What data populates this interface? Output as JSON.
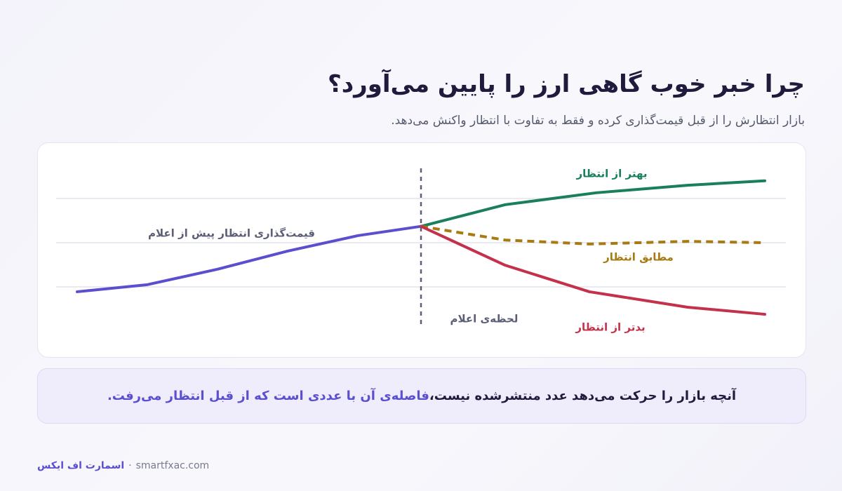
{
  "chart_data": {
    "type": "line",
    "title": "چرا خبر خوب گاهی ارز را پایین می‌آورد؟",
    "subtitle": "بازار انتظارش را از قبل قیمت‌گذاری کرده و فقط به تفاوت با انتظار واکنش می‌دهد.",
    "xlim": [
      -0.5,
      10.5
    ],
    "ylim": [
      0,
      4
    ],
    "yticks": [
      1,
      2,
      3
    ],
    "grid": true,
    "annotation": {
      "label": "لحظه‌ی اعلام",
      "x": 4.9
    },
    "series": [
      {
        "name": "قیمت‌گذاری انتظار پیش از اعلام",
        "color": "#5a4fcf",
        "dashed": false,
        "x": [
          0,
          1,
          2,
          3,
          4,
          4.9
        ],
        "values": [
          0.89,
          1.05,
          1.4,
          1.81,
          2.16,
          2.37
        ]
      },
      {
        "name": "بهتر از انتظار",
        "color": "#1a7f5a",
        "dashed": false,
        "x": [
          4.9,
          6.1,
          7.4,
          8.7,
          9.8
        ],
        "values": [
          2.37,
          2.86,
          3.13,
          3.3,
          3.4
        ]
      },
      {
        "name": "مطابق انتظار",
        "color": "#a77a12",
        "dashed": true,
        "x": [
          4.9,
          6.1,
          7.3,
          8.7,
          9.8
        ],
        "values": [
          2.37,
          2.06,
          1.97,
          2.03,
          2.0
        ]
      },
      {
        "name": "بدتر از انتظار",
        "color": "#c4314b",
        "dashed": false,
        "x": [
          4.9,
          6.1,
          7.3,
          8.7,
          9.8
        ],
        "values": [
          2.37,
          1.49,
          0.89,
          0.54,
          0.38
        ]
      }
    ]
  },
  "note": {
    "text": "آنچه بازار را حرکت می‌دهد عدد منتشرشده نیست، ",
    "highlight": "فاصله‌ی آن با عددی است که از قبل انتظار می‌رفت."
  },
  "footer": {
    "brand": "اسمارت اف ایکس",
    "separator": "·",
    "url": "smartfxac.com"
  }
}
